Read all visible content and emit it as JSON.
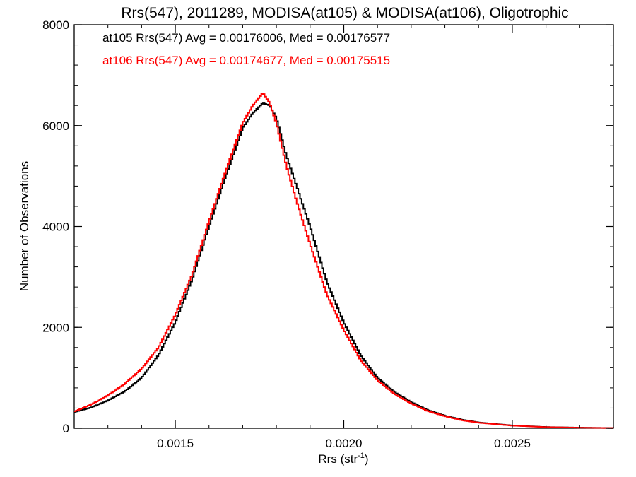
{
  "chart_data": {
    "type": "line",
    "title": "Rrs(547), 2011289, MODISA(at105) & MODISA(at106), Oligotrophic",
    "xlabel": "Rrs (str",
    "xlabel_sup": "-1",
    "xlabel_close": ")",
    "ylabel": "Number of Observations",
    "xlim": [
      0.0012,
      0.0028
    ],
    "ylim": [
      0,
      8000
    ],
    "xticks": [
      0.0015,
      0.002,
      0.0025
    ],
    "xtick_labels": [
      "0.0015",
      "0.0020",
      "0.0025"
    ],
    "yticks": [
      0,
      2000,
      4000,
      6000,
      8000
    ],
    "ytick_labels": [
      "0",
      "2000",
      "4000",
      "6000",
      "8000"
    ],
    "grid": false,
    "legend_placement": "top-left",
    "series": [
      {
        "name": "at105",
        "color": "#000000",
        "annotation": "at105 Rrs(547) Avg = 0.00176006, Med = 0.00176577",
        "x": [
          0.0012,
          0.00125,
          0.0013,
          0.00135,
          0.0014,
          0.00145,
          0.0015,
          0.00155,
          0.0016,
          0.00165,
          0.0017,
          0.00173,
          0.00176,
          0.00178,
          0.0018,
          0.00183,
          0.00186,
          0.0019,
          0.00195,
          0.002,
          0.00205,
          0.0021,
          0.00215,
          0.0022,
          0.00225,
          0.0023,
          0.00235,
          0.0024,
          0.0025,
          0.0026,
          0.0027,
          0.0028
        ],
        "y": [
          320,
          410,
          550,
          730,
          1000,
          1450,
          2100,
          2950,
          4000,
          5000,
          5950,
          6250,
          6450,
          6400,
          6150,
          5400,
          4800,
          4000,
          2900,
          2100,
          1450,
          1000,
          720,
          520,
          360,
          250,
          170,
          115,
          55,
          25,
          12,
          5
        ]
      },
      {
        "name": "at106",
        "color": "#ff0000",
        "annotation": "at106 Rrs(547) Avg = 0.00174677, Med = 0.00175515",
        "x": [
          0.0012,
          0.00125,
          0.0013,
          0.00135,
          0.0014,
          0.00145,
          0.0015,
          0.00155,
          0.0016,
          0.00165,
          0.0017,
          0.00173,
          0.00176,
          0.00178,
          0.0018,
          0.00183,
          0.00186,
          0.0019,
          0.00195,
          0.002,
          0.00205,
          0.0021,
          0.00215,
          0.0022,
          0.00225,
          0.0023,
          0.00235,
          0.0024,
          0.0025,
          0.0026,
          0.0027,
          0.0028
        ],
        "y": [
          330,
          470,
          650,
          880,
          1180,
          1600,
          2250,
          3050,
          4100,
          5100,
          6050,
          6400,
          6650,
          6450,
          6050,
          5200,
          4500,
          3650,
          2650,
          1950,
          1350,
          950,
          680,
          490,
          340,
          240,
          160,
          110,
          52,
          23,
          11,
          4
        ]
      }
    ]
  }
}
